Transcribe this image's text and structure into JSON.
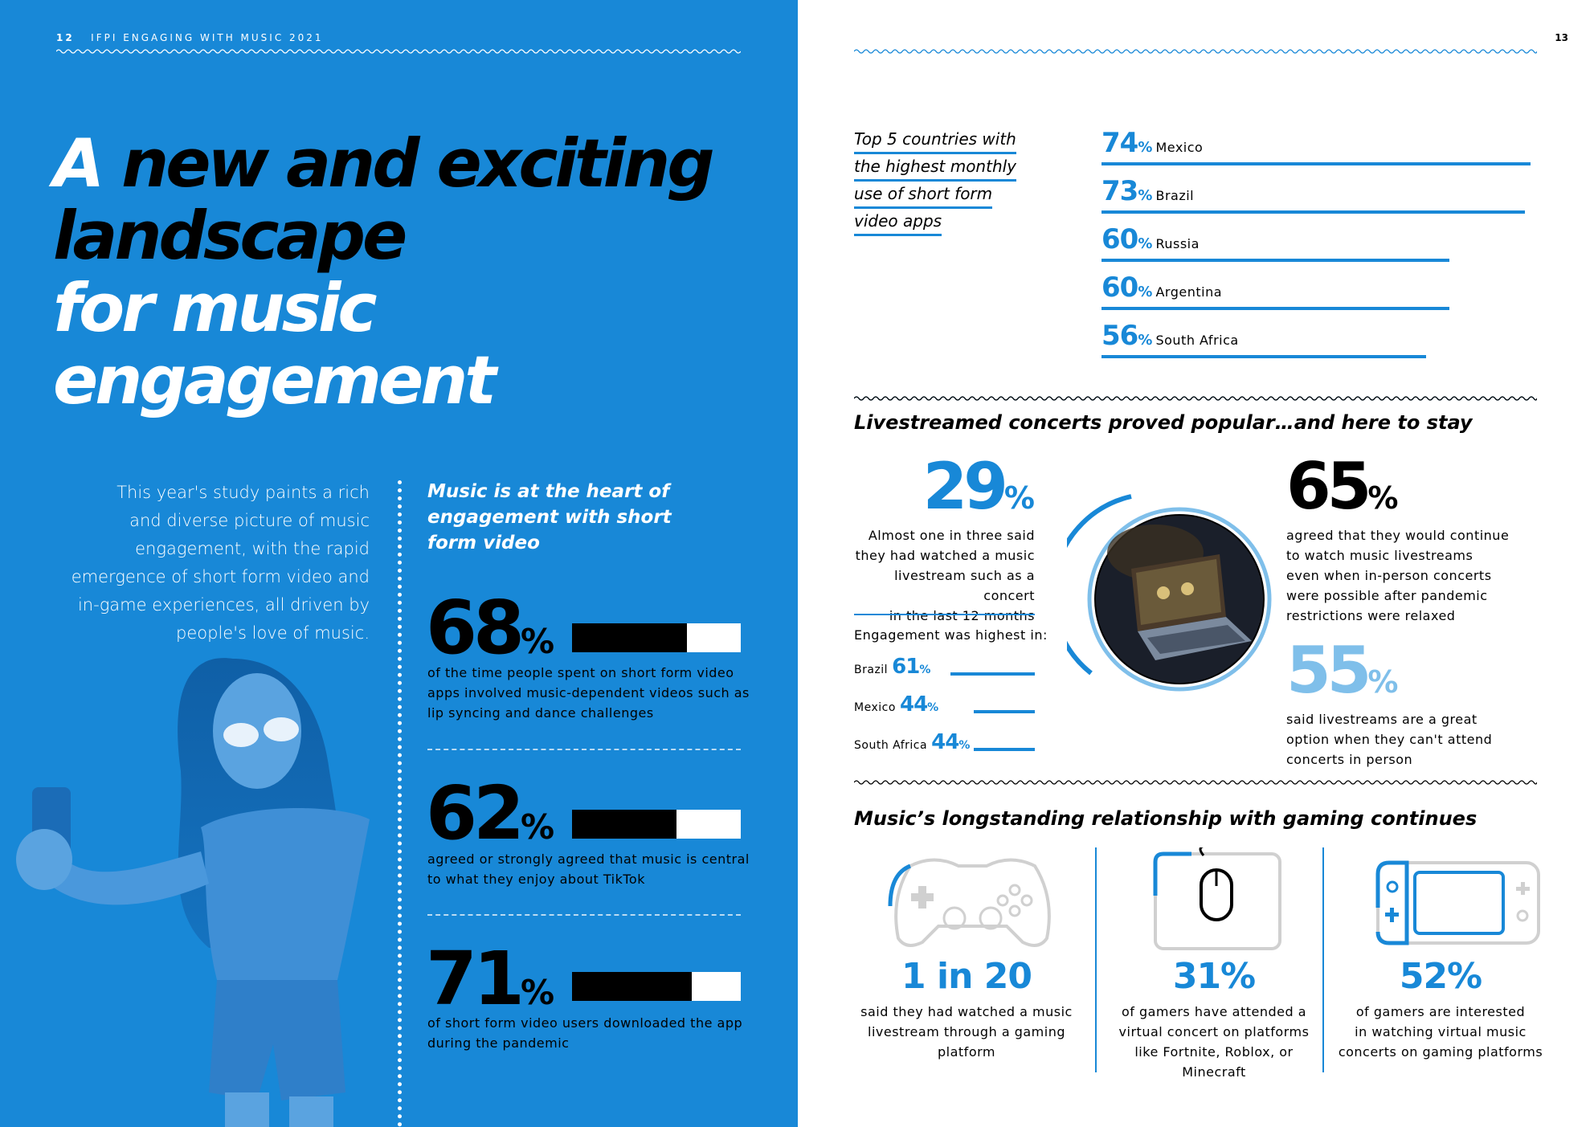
{
  "left_page": {
    "page_number": "12",
    "header_label": "IFPI ENGAGING WITH MUSIC 2021",
    "headline": {
      "line1_a": "A",
      "line1_b": "new and exciting",
      "line2": "landscape",
      "line3": "for music",
      "line4": "engagement"
    },
    "intro_lines": [
      "This year's study paints a rich",
      "and diverse picture of music",
      "engagement, with the rapid",
      "emergence of short form video and",
      "in-game experiences, all driven by",
      "people's love of music."
    ],
    "section_title_lines": [
      "Music is at the heart of",
      "engagement with short",
      "form video"
    ],
    "stats": [
      {
        "value": "68",
        "unit": "%",
        "fraction": 0.68,
        "lines": [
          "of the time people spent on short form video",
          "apps involved music-dependent videos such as",
          "lip syncing and dance challenges"
        ]
      },
      {
        "value": "62",
        "unit": "%",
        "fraction": 0.62,
        "lines": [
          "agreed or strongly agreed that music is central",
          "to what they enjoy about TikTok"
        ]
      },
      {
        "value": "71",
        "unit": "%",
        "fraction": 0.71,
        "lines": [
          "of short form video users downloaded the app",
          "during the pandemic"
        ]
      }
    ]
  },
  "right_page": {
    "page_number": "13",
    "top5_title_lines": [
      "Top 5 countries with",
      "the highest monthly",
      "use of short form",
      "video apps"
    ],
    "top5": [
      {
        "value": "74",
        "unit": "%",
        "country": "Mexico",
        "fraction": 0.74
      },
      {
        "value": "73",
        "unit": "%",
        "country": "Brazil",
        "fraction": 0.73
      },
      {
        "value": "60",
        "unit": "%",
        "country": "Russia",
        "fraction": 0.6
      },
      {
        "value": "60",
        "unit": "%",
        "country": "Argentina",
        "fraction": 0.6
      },
      {
        "value": "56",
        "unit": "%",
        "country": "South Africa",
        "fraction": 0.56
      }
    ],
    "livestream_title": "Livestreamed concerts proved popular…and here to stay",
    "livestream_stat": {
      "value": "29",
      "unit": "%",
      "lines": [
        "Almost one in three said",
        "they had watched a music",
        "livestream such as a concert",
        "in the last 12 months"
      ]
    },
    "engagement_label": "Engagement was highest in:",
    "engagement": [
      {
        "country": "Brazil",
        "value": "61",
        "unit": "%"
      },
      {
        "country": "Mexico",
        "value": "44",
        "unit": "%"
      },
      {
        "country": "South Africa",
        "value": "44",
        "unit": "%"
      }
    ],
    "continue_stat": {
      "value": "65",
      "unit": "%",
      "lines": [
        "agreed that they would continue",
        "to watch music livestreams",
        "even when in-person concerts",
        "were possible after pandemic",
        "restrictions were relaxed"
      ]
    },
    "option_stat": {
      "value": "55",
      "unit": "%",
      "lines": [
        "said livestreams are a great",
        "option when they can't attend",
        "concerts in person"
      ]
    },
    "gaming_title": "Music’s longstanding relationship with gaming continues",
    "gaming": [
      {
        "value": "1 in 20",
        "lines": [
          "said they had watched a music",
          "livestream through a gaming",
          "platform"
        ]
      },
      {
        "value": "31%",
        "lines": [
          "of gamers have attended a",
          "virtual concert on platforms",
          "like Fortnite, Roblox, or",
          "Minecraft"
        ]
      },
      {
        "value": "52%",
        "lines": [
          "of gamers are interested",
          "in watching virtual music",
          "concerts on gaming platforms"
        ]
      }
    ]
  },
  "colors": {
    "blue": "#1888d7",
    "light_blue": "#7fbfea",
    "black": "#000000",
    "white": "#ffffff"
  }
}
